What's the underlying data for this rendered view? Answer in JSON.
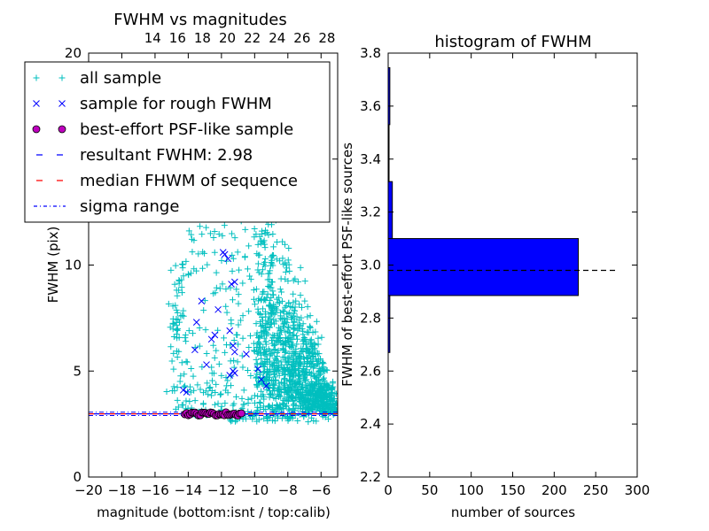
{
  "chart_data": [
    {
      "type": "scatter",
      "title": "FWHM vs magnitudes",
      "xlabel": "magnitude (bottom:isnt / top:calib)",
      "ylabel": "FWHM (pix)",
      "xlim": [
        -20,
        -5
      ],
      "ylim": [
        0,
        20
      ],
      "x_ticks": [
        -20,
        -18,
        -16,
        -14,
        -12,
        -10,
        -8,
        -6
      ],
      "x_tick_labels": [
        "−20",
        "−18",
        "−16",
        "−14",
        "−12",
        "−10",
        "−8",
        "−6"
      ],
      "y_ticks": [
        0,
        5,
        10,
        15,
        20
      ],
      "y_tick_labels": [
        "0",
        "5",
        "10",
        "",
        "20"
      ],
      "top_x_ticks": [
        14,
        16,
        18,
        20,
        22,
        24,
        26,
        28
      ],
      "top_xlim": [
        9,
        29
      ],
      "grid": false,
      "legend_position": "top-left",
      "resultant_fwhm": 2.98,
      "median_fwhm": 2.98,
      "sigma_range": [
        2.9,
        3.06
      ],
      "best_effort_range": [
        -14.2,
        -10.8
      ],
      "legend": [
        {
          "label": "all sample",
          "marker": "plus",
          "color": "#00bfbf"
        },
        {
          "label": "sample for rough FWHM",
          "marker": "x",
          "color": "#0000ff"
        },
        {
          "label": "best-effort PSF-like sample",
          "marker": "circle",
          "color": "#bf00bf"
        },
        {
          "label": "resultant FWHM: 2.98",
          "marker": "dash",
          "color": "#0000ff"
        },
        {
          "label": "median FHWM of sequence",
          "marker": "dash",
          "color": "#ff0000"
        },
        {
          "label": "sigma range",
          "marker": "dashdot",
          "color": "#0000ff"
        }
      ],
      "series": [
        {
          "name": "sample for rough FWHM",
          "points": [
            [
              -11.8,
              10.5
            ],
            [
              -11.6,
              10.3
            ],
            [
              -11.9,
              10.6
            ],
            [
              -11.2,
              9.2
            ],
            [
              -11.4,
              9.1
            ],
            [
              -13.2,
              8.3
            ],
            [
              -12.2,
              7.9
            ],
            [
              -13.5,
              7.3
            ],
            [
              -11.5,
              6.9
            ],
            [
              -12.6,
              6.5
            ],
            [
              -11.3,
              6.2
            ],
            [
              -13.6,
              6.0
            ],
            [
              -11.2,
              5.9
            ],
            [
              -12.9,
              5.3
            ],
            [
              -11.3,
              5.0
            ],
            [
              -11.2,
              4.9
            ],
            [
              -11.5,
              4.8
            ],
            [
              -14.3,
              4.1
            ],
            [
              -14.1,
              4.0
            ],
            [
              -12.4,
              6.7
            ],
            [
              -10.5,
              5.8
            ],
            [
              -9.8,
              5.1
            ],
            [
              -9.6,
              4.6
            ],
            [
              -9.3,
              4.3
            ]
          ]
        }
      ]
    },
    {
      "type": "bar",
      "orientation": "horizontal",
      "title": "histogram of FWHM",
      "xlabel": "number of sources",
      "ylabel": "FWHM of best-effort PSF-like sources",
      "xlim": [
        0,
        300
      ],
      "ylim": [
        2.2,
        3.8
      ],
      "x_ticks": [
        0,
        50,
        100,
        150,
        200,
        250,
        300
      ],
      "y_ticks": [
        2.2,
        2.4,
        2.6,
        2.8,
        3.0,
        3.2,
        3.4,
        3.6,
        3.8
      ],
      "y_tick_labels": [
        "2.2",
        "2.4",
        "2.6",
        "2.8",
        "3.0",
        "3.2",
        "3.4",
        "3.6",
        "3.8"
      ],
      "bin_edges": [
        2.67,
        2.885,
        3.1,
        3.315,
        3.53,
        3.745
      ],
      "counts": [
        2,
        229,
        5,
        1,
        2
      ],
      "bar_color": "#0000ff",
      "reference_line": 2.98
    }
  ]
}
